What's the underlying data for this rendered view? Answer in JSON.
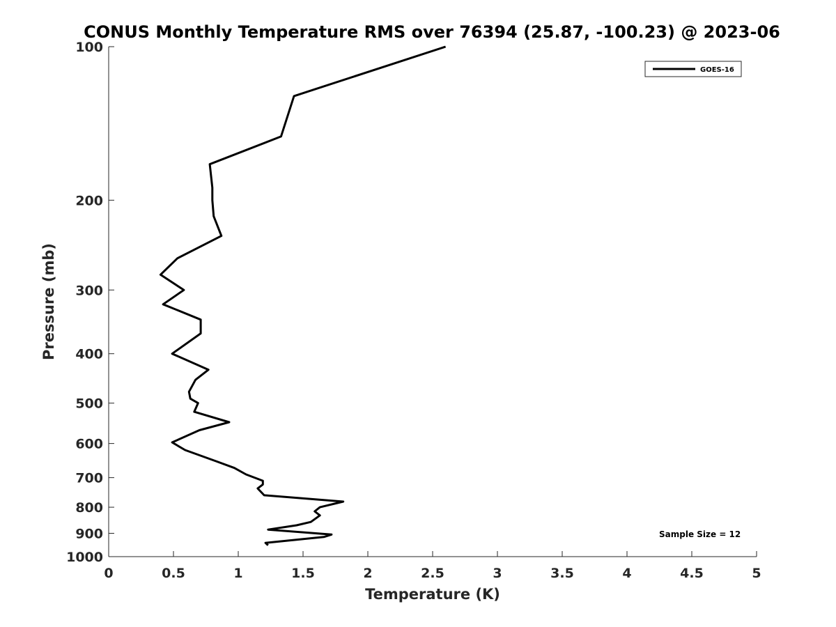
{
  "chart_data": {
    "type": "line",
    "title": "CONUS Monthly Temperature RMS over 76394 (25.87, -100.23) @ 2023-06",
    "xlabel": "Temperature (K)",
    "ylabel": "Pressure (mb)",
    "xlim": [
      0,
      5
    ],
    "ylim": [
      100,
      1000
    ],
    "y_scale": "log",
    "y_reversed": true,
    "x_ticks": [
      0,
      0.5,
      1,
      1.5,
      2,
      2.5,
      3,
      3.5,
      4,
      4.5,
      5
    ],
    "x_tick_labels": [
      "0",
      "0.5",
      "1",
      "1.5",
      "2",
      "2.5",
      "3",
      "3.5",
      "4",
      "4.5",
      "5"
    ],
    "y_ticks": [
      100,
      200,
      300,
      400,
      500,
      600,
      700,
      800,
      900,
      1000
    ],
    "y_tick_labels": [
      "100",
      "200",
      "300",
      "400",
      "500",
      "600",
      "700",
      "800",
      "900",
      "1000"
    ],
    "grid": false,
    "legend_position": "top-right",
    "series": [
      {
        "name": "GOES-16",
        "color": "#000000",
        "points": [
          [
            2.6,
            100
          ],
          [
            1.43,
            125
          ],
          [
            1.33,
            150
          ],
          [
            0.78,
            170
          ],
          [
            0.8,
            189
          ],
          [
            0.8,
            200
          ],
          [
            0.81,
            215
          ],
          [
            0.87,
            235
          ],
          [
            0.53,
            260
          ],
          [
            0.4,
            280
          ],
          [
            0.58,
            300
          ],
          [
            0.42,
            320
          ],
          [
            0.71,
            343
          ],
          [
            0.71,
            365
          ],
          [
            0.49,
            400
          ],
          [
            0.77,
            430
          ],
          [
            0.67,
            450
          ],
          [
            0.62,
            475
          ],
          [
            0.63,
            490
          ],
          [
            0.69,
            500
          ],
          [
            0.66,
            520
          ],
          [
            0.93,
            545
          ],
          [
            0.7,
            565
          ],
          [
            0.49,
            597
          ],
          [
            0.59,
            618
          ],
          [
            0.83,
            650
          ],
          [
            0.97,
            670
          ],
          [
            1.06,
            690
          ],
          [
            1.19,
            710
          ],
          [
            1.19,
            722
          ],
          [
            1.15,
            735
          ],
          [
            1.2,
            758
          ],
          [
            1.81,
            780
          ],
          [
            1.63,
            800
          ],
          [
            1.59,
            815
          ],
          [
            1.63,
            830
          ],
          [
            1.56,
            855
          ],
          [
            1.45,
            868
          ],
          [
            1.23,
            885
          ],
          [
            1.72,
            905
          ],
          [
            1.66,
            915
          ],
          [
            1.21,
            940
          ],
          [
            1.23,
            950
          ]
        ]
      }
    ],
    "annotations": [
      "Sample Size = 12"
    ]
  }
}
